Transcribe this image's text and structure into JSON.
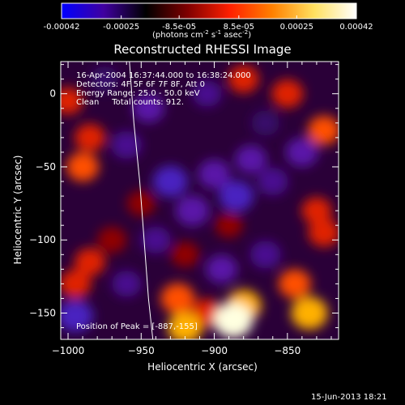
{
  "colorbar": {
    "ticks": [
      "-0.00042",
      "-0.00025",
      "-8.5e-05",
      "8.5e-05",
      "0.00025",
      "0.00042"
    ],
    "tick_values": [
      -0.00042,
      -0.00025,
      -8.5e-05,
      8.5e-05,
      0.00025,
      0.00042
    ],
    "range": [
      -0.00042,
      0.00042
    ],
    "unit_prefix": "(photons cm",
    "unit_exp1": "-2",
    "unit_mid": " s",
    "unit_exp2": "-1",
    "unit_mid2": " asec",
    "unit_exp3": "-2",
    "unit_suffix": ")",
    "colors": [
      "#0000ff",
      "#4000a0",
      "#000000",
      "#800000",
      "#ff2000",
      "#ff8000",
      "#ffe060",
      "#ffffff"
    ]
  },
  "chart_data": {
    "type": "heatmap",
    "title": "Reconstructed RHESSI Image",
    "xlabel": "Heliocentric X (arcsec)",
    "ylabel": "Heliocentric Y (arcsec)",
    "xlim": [
      -1005,
      -815
    ],
    "ylim": [
      -168,
      22
    ],
    "x_ticks": [
      -1000,
      -950,
      -900,
      -850
    ],
    "y_ticks": [
      0,
      -50,
      -100,
      -150
    ],
    "x_tick_labels": [
      "−1000",
      "−950",
      "−900",
      "−850"
    ],
    "y_tick_labels": [
      "0",
      "−50",
      "−100",
      "−150"
    ],
    "annotations": {
      "line1": "16-Apr-2004 16:37:44.000 to 16:38:24.000",
      "line2": "Detectors: 4F 5F 6F 7F 8F, Att 0",
      "line3": "Energy Range: 25.0 - 50.0 keV",
      "line4": "Clean     Total counts: 912.",
      "peak": "Position of Peak = [-887,-155]"
    },
    "peak": [
      -887,
      -155
    ],
    "limb_curve": [
      [
        -958,
        22
      ],
      [
        -955,
        -20
      ],
      [
        -951,
        -60
      ],
      [
        -948,
        -100
      ],
      [
        -945,
        -140
      ],
      [
        -942,
        -168
      ]
    ],
    "blobs": [
      {
        "x": -887,
        "y": -155,
        "v": 1.0
      },
      {
        "x": -880,
        "y": -145,
        "v": 0.8
      },
      {
        "x": -835,
        "y": -150,
        "v": 0.85
      },
      {
        "x": -845,
        "y": -130,
        "v": 0.6
      },
      {
        "x": -925,
        "y": -140,
        "v": 0.7
      },
      {
        "x": -920,
        "y": -160,
        "v": 0.75
      },
      {
        "x": -905,
        "y": -150,
        "v": 0.55
      },
      {
        "x": -995,
        "y": -130,
        "v": 0.55
      },
      {
        "x": -985,
        "y": -115,
        "v": 0.5
      },
      {
        "x": -990,
        "y": -50,
        "v": 0.6
      },
      {
        "x": -985,
        "y": -30,
        "v": 0.5
      },
      {
        "x": -1000,
        "y": -5,
        "v": 0.45
      },
      {
        "x": -880,
        "y": 10,
        "v": 0.5
      },
      {
        "x": -850,
        "y": 0,
        "v": 0.55
      },
      {
        "x": -825,
        "y": -25,
        "v": 0.6
      },
      {
        "x": -825,
        "y": -95,
        "v": 0.55
      },
      {
        "x": -830,
        "y": -80,
        "v": 0.45
      },
      {
        "x": -920,
        "y": -110,
        "v": 0.35
      },
      {
        "x": -970,
        "y": -100,
        "v": 0.4
      },
      {
        "x": -950,
        "y": -75,
        "v": 0.35
      },
      {
        "x": -890,
        "y": -90,
        "v": 0.3
      },
      {
        "x": -945,
        "y": -10,
        "v": -0.55
      },
      {
        "x": -960,
        "y": -35,
        "v": -0.5
      },
      {
        "x": -930,
        "y": -60,
        "v": -0.75
      },
      {
        "x": -915,
        "y": -80,
        "v": -0.7
      },
      {
        "x": -900,
        "y": -55,
        "v": -0.6
      },
      {
        "x": -885,
        "y": -70,
        "v": -0.75
      },
      {
        "x": -875,
        "y": -45,
        "v": -0.55
      },
      {
        "x": -860,
        "y": -60,
        "v": -0.5
      },
      {
        "x": -840,
        "y": -40,
        "v": -0.6
      },
      {
        "x": -865,
        "y": -110,
        "v": -0.5
      },
      {
        "x": -895,
        "y": -120,
        "v": -0.55
      },
      {
        "x": -940,
        "y": -100,
        "v": -0.45
      },
      {
        "x": -995,
        "y": -152,
        "v": -0.8
      },
      {
        "x": -960,
        "y": -130,
        "v": -0.4
      },
      {
        "x": -975,
        "y": 10,
        "v": -0.35
      },
      {
        "x": -905,
        "y": 0,
        "v": -0.4
      },
      {
        "x": -865,
        "y": -20,
        "v": -0.35
      }
    ]
  },
  "footer": {
    "date": "15-Jun-2013 18:21"
  }
}
